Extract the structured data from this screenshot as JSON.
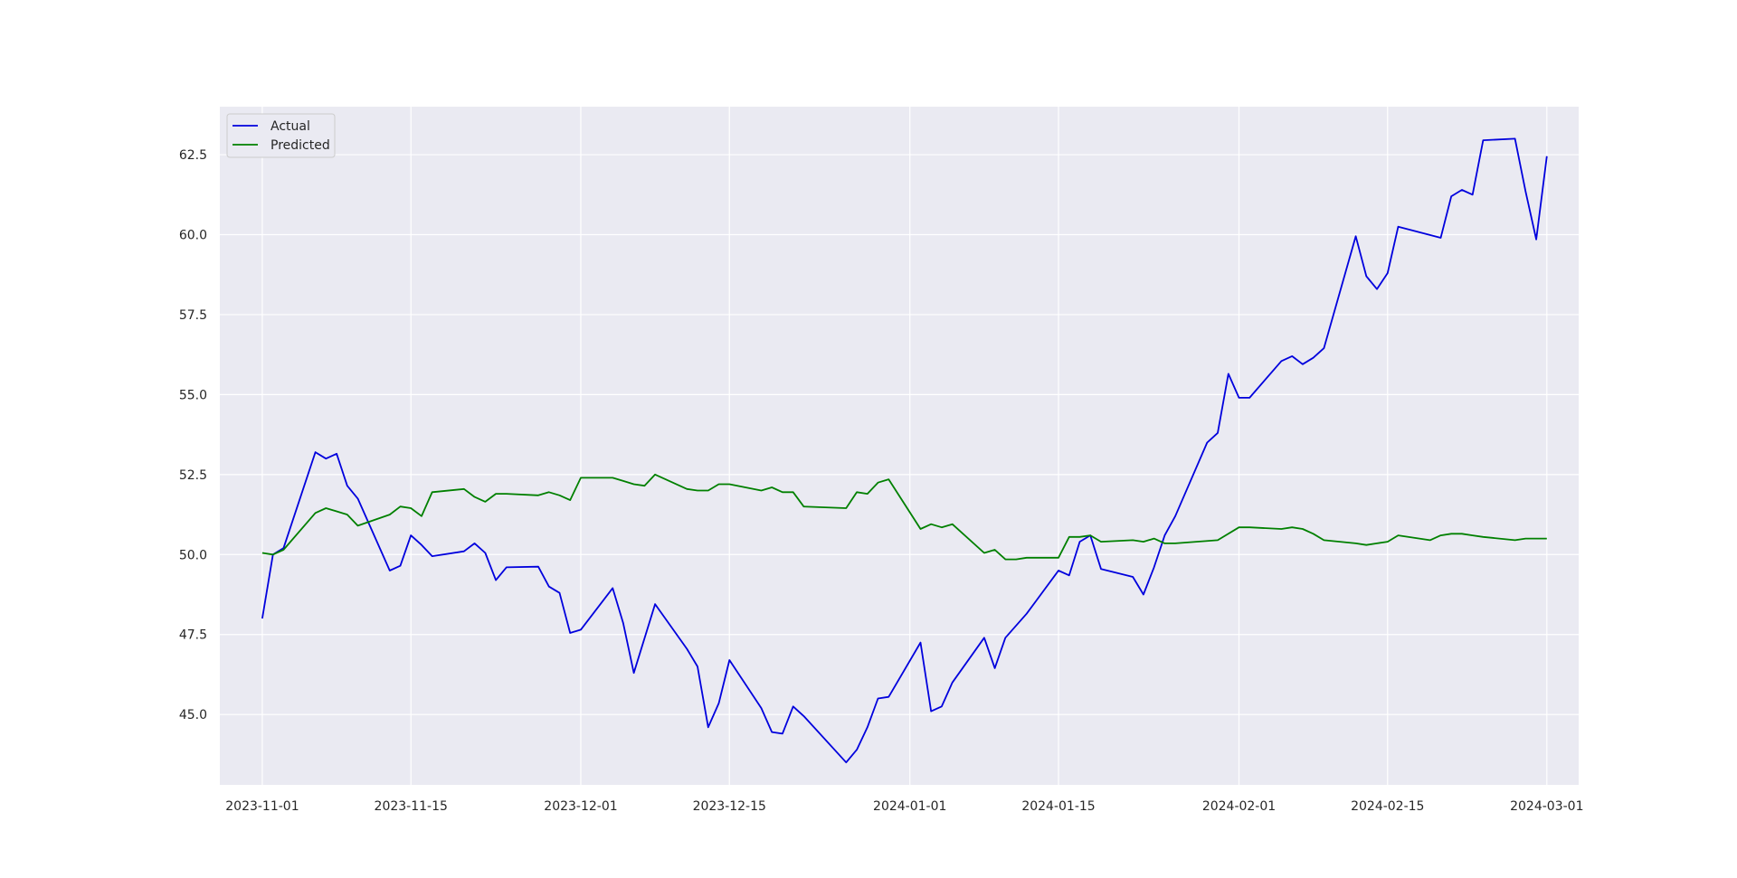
{
  "chart_data": {
    "type": "line",
    "title": "",
    "xlabel": "",
    "ylabel": "",
    "grid": true,
    "legend_position": "upper-left",
    "x_range": [
      "2023-10-28",
      "2024-03-04"
    ],
    "ylim": [
      42.8,
      64.0
    ],
    "x_ticks": [
      {
        "date": "2023-11-01",
        "label": "2023-11-01"
      },
      {
        "date": "2023-11-15",
        "label": "2023-11-15"
      },
      {
        "date": "2023-12-01",
        "label": "2023-12-01"
      },
      {
        "date": "2023-12-15",
        "label": "2023-12-15"
      },
      {
        "date": "2024-01-01",
        "label": "2024-01-01"
      },
      {
        "date": "2024-01-15",
        "label": "2024-01-15"
      },
      {
        "date": "2024-02-01",
        "label": "2024-02-01"
      },
      {
        "date": "2024-02-15",
        "label": "2024-02-15"
      },
      {
        "date": "2024-03-01",
        "label": "2024-03-01"
      }
    ],
    "y_ticks": [
      {
        "value": 45.0,
        "label": "45.0"
      },
      {
        "value": 47.5,
        "label": "47.5"
      },
      {
        "value": 50.0,
        "label": "50.0"
      },
      {
        "value": 52.5,
        "label": "52.5"
      },
      {
        "value": 55.0,
        "label": "55.0"
      },
      {
        "value": 57.5,
        "label": "57.5"
      },
      {
        "value": 60.0,
        "label": "60.0"
      },
      {
        "value": 62.5,
        "label": "62.5"
      }
    ],
    "series": [
      {
        "name": "Actual",
        "color": "#0000dd",
        "points": [
          [
            "2023-11-01",
            48.0
          ],
          [
            "2023-11-02",
            50.0
          ],
          [
            "2023-11-03",
            50.2
          ],
          [
            "2023-11-06",
            53.2
          ],
          [
            "2023-11-07",
            53.0
          ],
          [
            "2023-11-08",
            53.15
          ],
          [
            "2023-11-09",
            52.15
          ],
          [
            "2023-11-10",
            51.75
          ],
          [
            "2023-11-13",
            49.5
          ],
          [
            "2023-11-14",
            49.65
          ],
          [
            "2023-11-15",
            50.6
          ],
          [
            "2023-11-16",
            50.3
          ],
          [
            "2023-11-17",
            49.95
          ],
          [
            "2023-11-20",
            50.1
          ],
          [
            "2023-11-21",
            50.35
          ],
          [
            "2023-11-22",
            50.05
          ],
          [
            "2023-11-23",
            49.2
          ],
          [
            "2023-11-24",
            49.6
          ],
          [
            "2023-11-27",
            49.62
          ],
          [
            "2023-11-28",
            49.0
          ],
          [
            "2023-11-29",
            48.8
          ],
          [
            "2023-11-30",
            47.55
          ],
          [
            "2023-12-01",
            47.65
          ],
          [
            "2023-12-04",
            48.95
          ],
          [
            "2023-12-05",
            47.85
          ],
          [
            "2023-12-06",
            46.3
          ],
          [
            "2023-12-08",
            48.45
          ],
          [
            "2023-12-11",
            47.05
          ],
          [
            "2023-12-12",
            46.5
          ],
          [
            "2023-12-13",
            44.6
          ],
          [
            "2023-12-14",
            45.35
          ],
          [
            "2023-12-15",
            46.7
          ],
          [
            "2023-12-18",
            45.2
          ],
          [
            "2023-12-19",
            44.45
          ],
          [
            "2023-12-20",
            44.4
          ],
          [
            "2023-12-21",
            45.25
          ],
          [
            "2023-12-22",
            44.95
          ],
          [
            "2023-12-26",
            43.5
          ],
          [
            "2023-12-27",
            43.9
          ],
          [
            "2023-12-28",
            44.6
          ],
          [
            "2023-12-29",
            45.5
          ],
          [
            "2023-12-30",
            45.55
          ],
          [
            "2024-01-02",
            47.25
          ],
          [
            "2024-01-03",
            45.1
          ],
          [
            "2024-01-04",
            45.25
          ],
          [
            "2024-01-05",
            46.0
          ],
          [
            "2024-01-08",
            47.4
          ],
          [
            "2024-01-09",
            46.45
          ],
          [
            "2024-01-10",
            47.4
          ],
          [
            "2024-01-12",
            48.15
          ],
          [
            "2024-01-15",
            49.5
          ],
          [
            "2024-01-16",
            49.35
          ],
          [
            "2024-01-17",
            50.4
          ],
          [
            "2024-01-18",
            50.6
          ],
          [
            "2024-01-19",
            49.55
          ],
          [
            "2024-01-22",
            49.3
          ],
          [
            "2024-01-23",
            48.75
          ],
          [
            "2024-01-24",
            49.6
          ],
          [
            "2024-01-25",
            50.6
          ],
          [
            "2024-01-26",
            51.2
          ],
          [
            "2024-01-29",
            53.5
          ],
          [
            "2024-01-30",
            53.8
          ],
          [
            "2024-01-31",
            55.65
          ],
          [
            "2024-02-01",
            54.9
          ],
          [
            "2024-02-02",
            54.9
          ],
          [
            "2024-02-05",
            56.05
          ],
          [
            "2024-02-06",
            56.2
          ],
          [
            "2024-02-07",
            55.95
          ],
          [
            "2024-02-08",
            56.15
          ],
          [
            "2024-02-09",
            56.45
          ],
          [
            "2024-02-12",
            59.95
          ],
          [
            "2024-02-13",
            58.7
          ],
          [
            "2024-02-14",
            58.3
          ],
          [
            "2024-02-15",
            58.8
          ],
          [
            "2024-02-16",
            60.25
          ],
          [
            "2024-02-20",
            59.9
          ],
          [
            "2024-02-21",
            61.2
          ],
          [
            "2024-02-22",
            61.4
          ],
          [
            "2024-02-23",
            61.25
          ],
          [
            "2024-02-24",
            62.95
          ],
          [
            "2024-02-27",
            63.0
          ],
          [
            "2024-02-28",
            61.35
          ],
          [
            "2024-02-29",
            59.85
          ],
          [
            "2024-03-01",
            62.45
          ]
        ]
      },
      {
        "name": "Predicted",
        "color": "#008000",
        "points": [
          [
            "2023-11-01",
            50.05
          ],
          [
            "2023-11-02",
            50.0
          ],
          [
            "2023-11-03",
            50.15
          ],
          [
            "2023-11-06",
            51.3
          ],
          [
            "2023-11-07",
            51.45
          ],
          [
            "2023-11-08",
            51.35
          ],
          [
            "2023-11-09",
            51.25
          ],
          [
            "2023-11-10",
            50.9
          ],
          [
            "2023-11-13",
            51.25
          ],
          [
            "2023-11-14",
            51.5
          ],
          [
            "2023-11-15",
            51.45
          ],
          [
            "2023-11-16",
            51.2
          ],
          [
            "2023-11-17",
            51.95
          ],
          [
            "2023-11-20",
            52.05
          ],
          [
            "2023-11-21",
            51.8
          ],
          [
            "2023-11-22",
            51.65
          ],
          [
            "2023-11-23",
            51.9
          ],
          [
            "2023-11-24",
            51.9
          ],
          [
            "2023-11-27",
            51.85
          ],
          [
            "2023-11-28",
            51.95
          ],
          [
            "2023-11-29",
            51.85
          ],
          [
            "2023-11-30",
            51.7
          ],
          [
            "2023-12-01",
            52.4
          ],
          [
            "2023-12-04",
            52.4
          ],
          [
            "2023-12-05",
            52.3
          ],
          [
            "2023-12-06",
            52.2
          ],
          [
            "2023-12-07",
            52.15
          ],
          [
            "2023-12-08",
            52.5
          ],
          [
            "2023-12-11",
            52.05
          ],
          [
            "2023-12-12",
            52.0
          ],
          [
            "2023-12-13",
            52.0
          ],
          [
            "2023-12-14",
            52.2
          ],
          [
            "2023-12-15",
            52.2
          ],
          [
            "2023-12-18",
            52.0
          ],
          [
            "2023-12-19",
            52.1
          ],
          [
            "2023-12-20",
            51.95
          ],
          [
            "2023-12-21",
            51.95
          ],
          [
            "2023-12-22",
            51.5
          ],
          [
            "2023-12-26",
            51.45
          ],
          [
            "2023-12-27",
            51.95
          ],
          [
            "2023-12-28",
            51.9
          ],
          [
            "2023-12-29",
            52.25
          ],
          [
            "2023-12-30",
            52.35
          ],
          [
            "2024-01-02",
            50.8
          ],
          [
            "2024-01-03",
            50.95
          ],
          [
            "2024-01-04",
            50.85
          ],
          [
            "2024-01-05",
            50.95
          ],
          [
            "2024-01-08",
            50.05
          ],
          [
            "2024-01-09",
            50.15
          ],
          [
            "2024-01-10",
            49.85
          ],
          [
            "2024-01-11",
            49.85
          ],
          [
            "2024-01-12",
            49.9
          ],
          [
            "2024-01-15",
            49.9
          ],
          [
            "2024-01-16",
            50.55
          ],
          [
            "2024-01-17",
            50.55
          ],
          [
            "2024-01-18",
            50.6
          ],
          [
            "2024-01-19",
            50.4
          ],
          [
            "2024-01-22",
            50.45
          ],
          [
            "2024-01-23",
            50.4
          ],
          [
            "2024-01-24",
            50.5
          ],
          [
            "2024-01-25",
            50.35
          ],
          [
            "2024-01-26",
            50.35
          ],
          [
            "2024-01-30",
            50.45
          ],
          [
            "2024-02-01",
            50.85
          ],
          [
            "2024-02-02",
            50.85
          ],
          [
            "2024-02-05",
            50.8
          ],
          [
            "2024-02-06",
            50.85
          ],
          [
            "2024-02-07",
            50.8
          ],
          [
            "2024-02-08",
            50.65
          ],
          [
            "2024-02-09",
            50.45
          ],
          [
            "2024-02-12",
            50.35
          ],
          [
            "2024-02-13",
            50.3
          ],
          [
            "2024-02-14",
            50.35
          ],
          [
            "2024-02-15",
            50.4
          ],
          [
            "2024-02-16",
            50.6
          ],
          [
            "2024-02-19",
            50.45
          ],
          [
            "2024-02-20",
            50.6
          ],
          [
            "2024-02-21",
            50.65
          ],
          [
            "2024-02-22",
            50.65
          ],
          [
            "2024-02-23",
            50.6
          ],
          [
            "2024-02-24",
            50.55
          ],
          [
            "2024-02-27",
            50.45
          ],
          [
            "2024-02-28",
            50.5
          ],
          [
            "2024-02-29",
            50.5
          ],
          [
            "2024-03-01",
            50.5
          ]
        ]
      }
    ]
  },
  "colors": {
    "plot_background": "#eaeaf2",
    "grid": "#ffffff",
    "legend_background": "#eaeaf2",
    "legend_border": "#cccccc"
  }
}
